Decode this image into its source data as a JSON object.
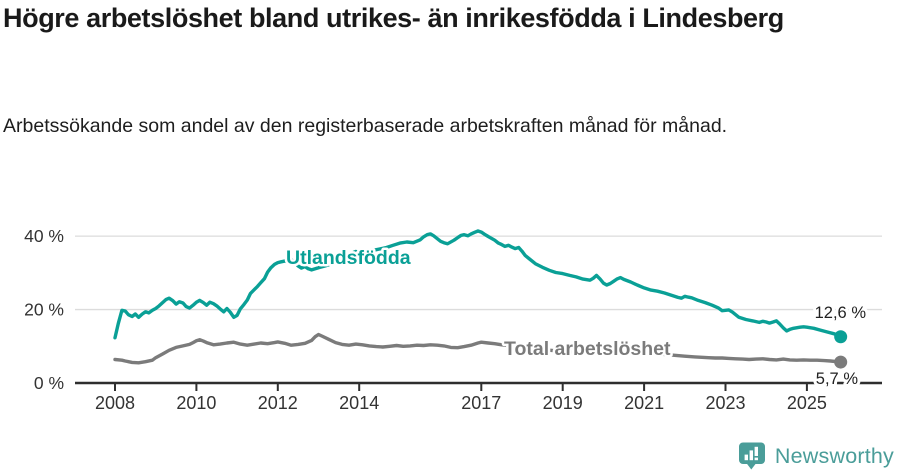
{
  "page": {
    "background": "#ffffff"
  },
  "header": {
    "title": "Högre arbetslöshet bland utrikes- än inrikesfödda i Lindesberg",
    "subtitle": "Arbetssökande som andel av den registerbaserade arbetskraften månad för månad."
  },
  "footer": {
    "brand": "Newsworthy",
    "logo_icon": "bar-chart-speech-bubble-icon",
    "brand_color": "#4a9d99"
  },
  "chart_data": {
    "type": "line",
    "unit": "%",
    "grid": "horizontal-light",
    "legend_position": "inline-labels",
    "colors": {
      "axis": "#2e2e2e",
      "gridline": "#dcdcdc",
      "tick_label": "#333333",
      "end_label_text": "#222222"
    },
    "x_axis": {
      "range": [
        2008,
        2025.9
      ],
      "tick_years": [
        2008,
        2010,
        2012,
        2014,
        2017,
        2019,
        2021,
        2023,
        2025
      ],
      "tick_labels": [
        "2008",
        "2010",
        "2012",
        "2014",
        "2017",
        "2019",
        "2021",
        "2023",
        "2025"
      ]
    },
    "y_axis": {
      "range": [
        0,
        44
      ],
      "ticks": [
        0,
        20,
        40
      ],
      "tick_labels": [
        "0 %",
        "20 %",
        "40 %"
      ]
    },
    "series": [
      {
        "name": "Utlandsfödda",
        "color": "#0aa096",
        "end_value": 12.6,
        "end_label": "12,6 %",
        "points": [
          [
            2008.0,
            12.3
          ],
          [
            2008.08,
            16.2
          ],
          [
            2008.17,
            19.8
          ],
          [
            2008.25,
            19.6
          ],
          [
            2008.33,
            18.6
          ],
          [
            2008.42,
            18.1
          ],
          [
            2008.5,
            18.8
          ],
          [
            2008.58,
            17.9
          ],
          [
            2008.67,
            18.8
          ],
          [
            2008.75,
            19.4
          ],
          [
            2008.83,
            19.1
          ],
          [
            2008.92,
            19.8
          ],
          [
            2009.0,
            20.3
          ],
          [
            2009.08,
            21.0
          ],
          [
            2009.17,
            21.9
          ],
          [
            2009.25,
            22.7
          ],
          [
            2009.33,
            23.1
          ],
          [
            2009.42,
            22.4
          ],
          [
            2009.5,
            21.5
          ],
          [
            2009.58,
            22.1
          ],
          [
            2009.67,
            21.8
          ],
          [
            2009.75,
            20.8
          ],
          [
            2009.83,
            20.4
          ],
          [
            2009.92,
            21.2
          ],
          [
            2010.0,
            22.0
          ],
          [
            2010.08,
            22.5
          ],
          [
            2010.17,
            21.9
          ],
          [
            2010.25,
            21.2
          ],
          [
            2010.33,
            22.0
          ],
          [
            2010.42,
            21.6
          ],
          [
            2010.5,
            21.0
          ],
          [
            2010.58,
            20.2
          ],
          [
            2010.67,
            19.4
          ],
          [
            2010.75,
            20.3
          ],
          [
            2010.83,
            19.3
          ],
          [
            2010.92,
            17.9
          ],
          [
            2011.0,
            18.4
          ],
          [
            2011.08,
            20.2
          ],
          [
            2011.17,
            21.4
          ],
          [
            2011.25,
            22.6
          ],
          [
            2011.33,
            24.4
          ],
          [
            2011.42,
            25.4
          ],
          [
            2011.5,
            26.3
          ],
          [
            2011.58,
            27.3
          ],
          [
            2011.67,
            28.4
          ],
          [
            2011.75,
            30.2
          ],
          [
            2011.83,
            31.4
          ],
          [
            2011.92,
            32.3
          ],
          [
            2012.0,
            32.8
          ],
          [
            2012.08,
            33.0
          ],
          [
            2012.17,
            33.2
          ],
          [
            2012.25,
            33.0
          ],
          [
            2012.33,
            33.6
          ],
          [
            2012.42,
            32.8
          ],
          [
            2012.5,
            31.9
          ],
          [
            2012.58,
            31.3
          ],
          [
            2012.67,
            31.7
          ],
          [
            2012.75,
            31.1
          ],
          [
            2012.83,
            30.8
          ],
          [
            2012.92,
            31.1
          ],
          [
            2013.0,
            31.4
          ],
          [
            2013.17,
            31.9
          ],
          [
            2013.33,
            32.5
          ],
          [
            2013.5,
            33.3
          ],
          [
            2013.67,
            34.3
          ],
          [
            2013.83,
            35.4
          ],
          [
            2013.92,
            35.8
          ],
          [
            2014.0,
            35.1
          ],
          [
            2014.17,
            35.7
          ],
          [
            2014.33,
            36.1
          ],
          [
            2014.5,
            36.5
          ],
          [
            2014.67,
            36.9
          ],
          [
            2014.83,
            37.5
          ],
          [
            2015.0,
            38.1
          ],
          [
            2015.17,
            38.4
          ],
          [
            2015.33,
            38.2
          ],
          [
            2015.5,
            39.0
          ],
          [
            2015.58,
            39.8
          ],
          [
            2015.67,
            40.4
          ],
          [
            2015.75,
            40.6
          ],
          [
            2015.83,
            40.1
          ],
          [
            2015.92,
            39.3
          ],
          [
            2016.0,
            38.6
          ],
          [
            2016.08,
            38.2
          ],
          [
            2016.17,
            37.9
          ],
          [
            2016.33,
            38.9
          ],
          [
            2016.42,
            39.6
          ],
          [
            2016.5,
            40.2
          ],
          [
            2016.58,
            40.4
          ],
          [
            2016.67,
            40.1
          ],
          [
            2016.75,
            40.6
          ],
          [
            2016.83,
            41.0
          ],
          [
            2016.92,
            41.4
          ],
          [
            2017.0,
            41.1
          ],
          [
            2017.08,
            40.5
          ],
          [
            2017.17,
            39.9
          ],
          [
            2017.33,
            38.9
          ],
          [
            2017.42,
            38.1
          ],
          [
            2017.5,
            37.7
          ],
          [
            2017.58,
            37.2
          ],
          [
            2017.67,
            37.5
          ],
          [
            2017.75,
            37.0
          ],
          [
            2017.83,
            36.6
          ],
          [
            2017.92,
            36.9
          ],
          [
            2018.0,
            35.9
          ],
          [
            2018.08,
            34.7
          ],
          [
            2018.17,
            33.9
          ],
          [
            2018.33,
            32.5
          ],
          [
            2018.5,
            31.5
          ],
          [
            2018.67,
            30.7
          ],
          [
            2018.83,
            30.1
          ],
          [
            2019.0,
            29.8
          ],
          [
            2019.17,
            29.3
          ],
          [
            2019.33,
            28.9
          ],
          [
            2019.5,
            28.3
          ],
          [
            2019.67,
            28.0
          ],
          [
            2019.75,
            28.5
          ],
          [
            2019.83,
            29.3
          ],
          [
            2019.92,
            28.3
          ],
          [
            2020.0,
            27.2
          ],
          [
            2020.08,
            26.7
          ],
          [
            2020.17,
            27.1
          ],
          [
            2020.25,
            27.7
          ],
          [
            2020.33,
            28.3
          ],
          [
            2020.42,
            28.7
          ],
          [
            2020.5,
            28.2
          ],
          [
            2020.67,
            27.5
          ],
          [
            2020.83,
            26.7
          ],
          [
            2021.0,
            25.9
          ],
          [
            2021.17,
            25.3
          ],
          [
            2021.33,
            25.0
          ],
          [
            2021.5,
            24.5
          ],
          [
            2021.67,
            23.9
          ],
          [
            2021.83,
            23.3
          ],
          [
            2021.92,
            23.1
          ],
          [
            2022.0,
            23.6
          ],
          [
            2022.08,
            23.4
          ],
          [
            2022.17,
            23.2
          ],
          [
            2022.33,
            22.5
          ],
          [
            2022.5,
            21.9
          ],
          [
            2022.67,
            21.2
          ],
          [
            2022.83,
            20.4
          ],
          [
            2022.92,
            19.7
          ],
          [
            2023.0,
            19.8
          ],
          [
            2023.08,
            19.9
          ],
          [
            2023.17,
            19.3
          ],
          [
            2023.33,
            17.9
          ],
          [
            2023.5,
            17.3
          ],
          [
            2023.67,
            16.9
          ],
          [
            2023.83,
            16.5
          ],
          [
            2023.92,
            16.8
          ],
          [
            2024.0,
            16.6
          ],
          [
            2024.08,
            16.3
          ],
          [
            2024.17,
            16.6
          ],
          [
            2024.25,
            16.9
          ],
          [
            2024.33,
            16.1
          ],
          [
            2024.42,
            15.0
          ],
          [
            2024.5,
            14.2
          ],
          [
            2024.58,
            14.6
          ],
          [
            2024.67,
            14.9
          ],
          [
            2024.83,
            15.2
          ],
          [
            2024.92,
            15.3
          ],
          [
            2025.0,
            15.2
          ],
          [
            2025.17,
            14.9
          ],
          [
            2025.33,
            14.4
          ],
          [
            2025.5,
            13.9
          ],
          [
            2025.67,
            13.4
          ],
          [
            2025.83,
            12.6
          ]
        ]
      },
      {
        "name": "Total arbetslöshet",
        "color": "#7b7b7b",
        "end_value": 5.7,
        "end_label": "5,7 %",
        "points": [
          [
            2008.0,
            6.4
          ],
          [
            2008.17,
            6.2
          ],
          [
            2008.25,
            6.0
          ],
          [
            2008.42,
            5.6
          ],
          [
            2008.58,
            5.5
          ],
          [
            2008.75,
            5.8
          ],
          [
            2008.92,
            6.2
          ],
          [
            2009.0,
            6.9
          ],
          [
            2009.17,
            7.9
          ],
          [
            2009.33,
            8.9
          ],
          [
            2009.5,
            9.7
          ],
          [
            2009.67,
            10.1
          ],
          [
            2009.83,
            10.5
          ],
          [
            2009.92,
            11.0
          ],
          [
            2010.0,
            11.5
          ],
          [
            2010.08,
            11.8
          ],
          [
            2010.17,
            11.4
          ],
          [
            2010.25,
            11.0
          ],
          [
            2010.42,
            10.4
          ],
          [
            2010.58,
            10.6
          ],
          [
            2010.75,
            10.9
          ],
          [
            2010.92,
            11.1
          ],
          [
            2011.08,
            10.6
          ],
          [
            2011.25,
            10.3
          ],
          [
            2011.42,
            10.6
          ],
          [
            2011.58,
            10.9
          ],
          [
            2011.75,
            10.7
          ],
          [
            2011.92,
            11.0
          ],
          [
            2012.0,
            11.2
          ],
          [
            2012.17,
            10.8
          ],
          [
            2012.33,
            10.3
          ],
          [
            2012.5,
            10.5
          ],
          [
            2012.67,
            10.8
          ],
          [
            2012.83,
            11.6
          ],
          [
            2012.92,
            12.6
          ],
          [
            2013.0,
            13.2
          ],
          [
            2013.08,
            12.8
          ],
          [
            2013.25,
            11.9
          ],
          [
            2013.42,
            11.0
          ],
          [
            2013.58,
            10.5
          ],
          [
            2013.75,
            10.3
          ],
          [
            2013.92,
            10.6
          ],
          [
            2014.08,
            10.4
          ],
          [
            2014.25,
            10.1
          ],
          [
            2014.42,
            9.9
          ],
          [
            2014.58,
            9.8
          ],
          [
            2014.75,
            10.0
          ],
          [
            2014.92,
            10.2
          ],
          [
            2015.08,
            10.0
          ],
          [
            2015.25,
            10.1
          ],
          [
            2015.42,
            10.3
          ],
          [
            2015.58,
            10.2
          ],
          [
            2015.75,
            10.4
          ],
          [
            2015.92,
            10.3
          ],
          [
            2016.08,
            10.1
          ],
          [
            2016.25,
            9.7
          ],
          [
            2016.42,
            9.6
          ],
          [
            2016.58,
            9.9
          ],
          [
            2016.75,
            10.3
          ],
          [
            2016.92,
            10.9
          ],
          [
            2017.0,
            11.1
          ],
          [
            2017.17,
            10.9
          ],
          [
            2017.33,
            10.7
          ],
          [
            2017.5,
            10.4
          ],
          [
            2017.75,
            10.1
          ],
          [
            2018.0,
            9.7
          ],
          [
            2018.5,
            9.1
          ],
          [
            2019.0,
            8.6
          ],
          [
            2019.5,
            8.3
          ],
          [
            2020.0,
            8.4
          ],
          [
            2020.33,
            9.2
          ],
          [
            2020.67,
            8.8
          ],
          [
            2021.0,
            8.3
          ],
          [
            2021.5,
            7.8
          ],
          [
            2022.0,
            7.3
          ],
          [
            2022.25,
            7.1
          ],
          [
            2022.42,
            7.0
          ],
          [
            2022.58,
            6.9
          ],
          [
            2022.75,
            6.8
          ],
          [
            2022.92,
            6.8
          ],
          [
            2023.08,
            6.7
          ],
          [
            2023.25,
            6.6
          ],
          [
            2023.42,
            6.5
          ],
          [
            2023.58,
            6.4
          ],
          [
            2023.75,
            6.5
          ],
          [
            2023.92,
            6.6
          ],
          [
            2024.08,
            6.4
          ],
          [
            2024.25,
            6.3
          ],
          [
            2024.42,
            6.5
          ],
          [
            2024.58,
            6.3
          ],
          [
            2024.75,
            6.2
          ],
          [
            2024.92,
            6.3
          ],
          [
            2025.08,
            6.2
          ],
          [
            2025.25,
            6.2
          ],
          [
            2025.42,
            6.1
          ],
          [
            2025.58,
            6.0
          ],
          [
            2025.83,
            5.7
          ]
        ]
      }
    ]
  }
}
